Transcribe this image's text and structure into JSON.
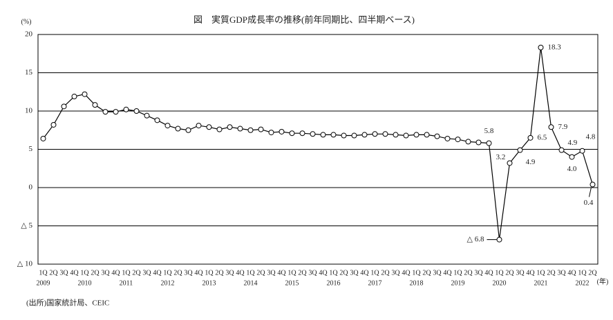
{
  "chart_data": {
    "type": "line",
    "title": "図　実質GDP成長率の推移(前年同期比、四半期ベース)",
    "y_unit": "(%)",
    "x_unit": "(年)",
    "source": "(出所)国家統計局、CEIC",
    "categories": [
      "1Q",
      "2Q",
      "3Q",
      "4Q",
      "1Q",
      "2Q",
      "3Q",
      "4Q",
      "1Q",
      "2Q",
      "3Q",
      "4Q",
      "1Q",
      "2Q",
      "3Q",
      "4Q",
      "1Q",
      "2Q",
      "3Q",
      "4Q",
      "1Q",
      "2Q",
      "3Q",
      "4Q",
      "1Q",
      "2Q",
      "3Q",
      "4Q",
      "1Q",
      "2Q",
      "3Q",
      "4Q",
      "1Q",
      "2Q",
      "3Q",
      "4Q",
      "1Q",
      "2Q",
      "3Q",
      "4Q",
      "1Q",
      "2Q",
      "3Q",
      "4Q",
      "1Q",
      "2Q",
      "3Q",
      "4Q",
      "1Q",
      "2Q",
      "3Q",
      "4Q",
      "1Q",
      "2Q"
    ],
    "years": [
      "2009",
      "2010",
      "2011",
      "2012",
      "2013",
      "2014",
      "2015",
      "2016",
      "2017",
      "2018",
      "2019",
      "2020",
      "2021",
      "2022"
    ],
    "values": [
      6.4,
      8.2,
      10.6,
      11.9,
      12.2,
      10.8,
      9.9,
      9.9,
      10.2,
      10.0,
      9.4,
      8.8,
      8.1,
      7.7,
      7.5,
      8.1,
      7.9,
      7.6,
      7.9,
      7.7,
      7.5,
      7.6,
      7.2,
      7.3,
      7.1,
      7.1,
      7.0,
      6.9,
      6.9,
      6.8,
      6.8,
      6.9,
      7.0,
      7.0,
      6.9,
      6.8,
      6.9,
      6.9,
      6.7,
      6.4,
      6.3,
      6.0,
      5.9,
      5.8,
      -6.8,
      3.2,
      4.9,
      6.5,
      18.3,
      7.9,
      4.9,
      4.0,
      4.8,
      0.4
    ],
    "value_labels": [
      null,
      null,
      null,
      null,
      null,
      null,
      null,
      null,
      null,
      null,
      null,
      null,
      null,
      null,
      null,
      null,
      null,
      null,
      null,
      null,
      null,
      null,
      null,
      null,
      null,
      null,
      null,
      null,
      null,
      null,
      null,
      null,
      null,
      null,
      null,
      null,
      null,
      null,
      null,
      null,
      null,
      null,
      null,
      "5.8",
      "△ 6.8",
      "3.2",
      "4.9",
      "6.5",
      "18.3",
      "7.9",
      "4.9",
      "4.0",
      "4.8",
      "0.4"
    ],
    "color": "#000000",
    "ylim": [
      -10,
      20
    ],
    "yticks": [
      {
        "value": -10,
        "label": "△ 10"
      },
      {
        "value": -5,
        "label": "△ 5"
      },
      0,
      5,
      10,
      15,
      20
    ],
    "grid": true
  }
}
